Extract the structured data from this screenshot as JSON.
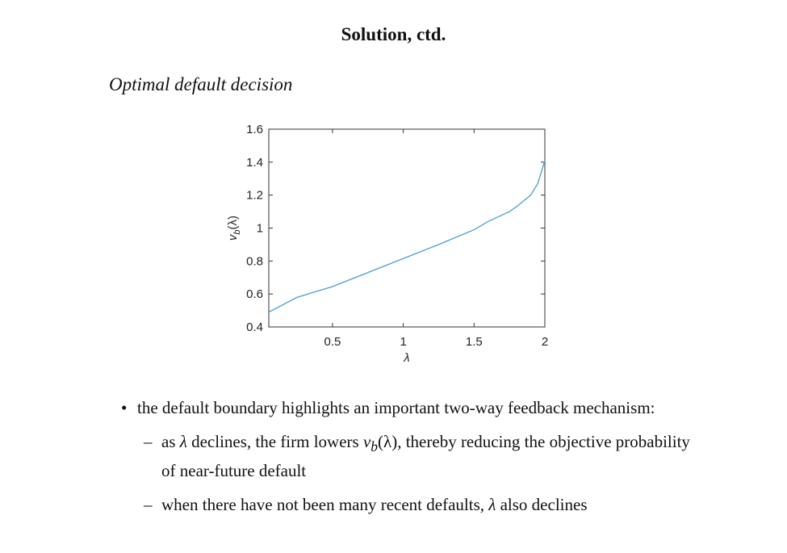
{
  "title": "Solution, ctd.",
  "subtitle": "Optimal default decision",
  "chart_data": {
    "type": "line",
    "xlabel": "λ",
    "ylabel": [
      "v",
      "b",
      "(λ)"
    ],
    "x": [
      0.05,
      0.25,
      0.5,
      0.75,
      1,
      1.25,
      1.5,
      1.6,
      1.75,
      1.8,
      1.9,
      1.95,
      2
    ],
    "series": [
      {
        "color": "#4a9fd0",
        "values": [
          0.49,
          0.58,
          0.645,
          0.73,
          0.815,
          0.9,
          0.99,
          1.04,
          1.1,
          1.13,
          1.2,
          1.27,
          1.41
        ]
      }
    ],
    "xlim": [
      0.05,
      2
    ],
    "ylim": [
      0.4,
      1.6
    ],
    "xticks": [
      0.5,
      1,
      1.5,
      2
    ],
    "yticks": [
      0.4,
      0.6,
      0.8,
      1,
      1.2,
      1.4,
      1.6
    ]
  },
  "bullets": [
    "the default boundary highlights an important two-way feedback mechanism:"
  ],
  "sub_bullets": [
    [
      "as ",
      "λ",
      " declines, the firm lowers ",
      "v",
      "b",
      "(λ)",
      ", thereby reducing the objective probability of near-future default"
    ],
    [
      "when there have not been many recent defaults, ",
      "λ",
      " also declines"
    ]
  ]
}
